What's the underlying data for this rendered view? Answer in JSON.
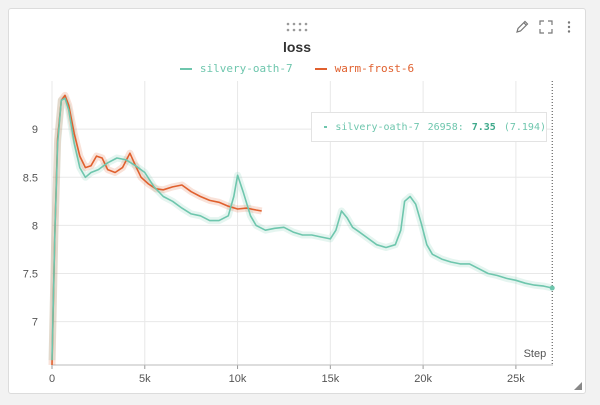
{
  "panel": {
    "icons": [
      "drag-handle-icon",
      "pencil-icon",
      "fullscreen-icon",
      "more-vertical-icon"
    ]
  },
  "colors": {
    "series1": "#6ec6ad",
    "series2": "#e0602e",
    "grid": "#e8e8e8"
  },
  "tooltip": {
    "series": "silvery-oath-7",
    "step": "26958:",
    "value": "7.35",
    "smoothed": "(7.194)"
  },
  "chart_data": {
    "type": "line",
    "title": "loss",
    "xlabel": "Step",
    "ylabel": "",
    "xlim": [
      0,
      27000
    ],
    "ylim": [
      6.55,
      9.5
    ],
    "xticks": [
      0,
      5000,
      10000,
      15000,
      20000,
      25000
    ],
    "xtick_labels": [
      "0",
      "5k",
      "10k",
      "15k",
      "20k",
      "25k"
    ],
    "yticks": [
      7,
      7.5,
      8,
      8.5,
      9
    ],
    "ytick_labels": [
      "7",
      "7.5",
      "8",
      "8.5",
      "9"
    ],
    "grid": true,
    "legend": "top-center",
    "hover_step": 26958,
    "series": [
      {
        "name": "silvery-oath-7",
        "x": [
          0,
          150,
          300,
          500,
          700,
          900,
          1200,
          1500,
          1800,
          2100,
          2500,
          3000,
          3500,
          4000,
          4500,
          5000,
          5500,
          6000,
          6500,
          7000,
          7500,
          8000,
          8500,
          9000,
          9500,
          9800,
          10000,
          10300,
          10700,
          11000,
          11500,
          12000,
          12500,
          13000,
          13500,
          14000,
          14500,
          15000,
          15300,
          15600,
          15900,
          16200,
          16500,
          17000,
          17500,
          18000,
          18500,
          18800,
          19000,
          19300,
          19600,
          19900,
          20200,
          20500,
          21000,
          21500,
          22000,
          22500,
          23000,
          23500,
          24000,
          24500,
          25000,
          25500,
          26000,
          26500,
          26958
        ],
        "y": [
          6.6,
          7.9,
          8.85,
          9.3,
          9.32,
          9.2,
          8.85,
          8.6,
          8.5,
          8.55,
          8.58,
          8.65,
          8.7,
          8.68,
          8.62,
          8.55,
          8.4,
          8.3,
          8.25,
          8.18,
          8.12,
          8.1,
          8.05,
          8.05,
          8.1,
          8.3,
          8.52,
          8.35,
          8.1,
          8.0,
          7.95,
          7.97,
          7.98,
          7.93,
          7.9,
          7.9,
          7.88,
          7.86,
          7.95,
          8.15,
          8.08,
          7.98,
          7.94,
          7.87,
          7.8,
          7.77,
          7.8,
          7.95,
          8.25,
          8.3,
          8.22,
          8.02,
          7.8,
          7.7,
          7.65,
          7.62,
          7.6,
          7.6,
          7.55,
          7.5,
          7.48,
          7.45,
          7.43,
          7.4,
          7.38,
          7.37,
          7.35
        ]
      },
      {
        "name": "warm-frost-6",
        "x": [
          0,
          150,
          300,
          500,
          700,
          900,
          1200,
          1500,
          1800,
          2100,
          2400,
          2700,
          3000,
          3400,
          3800,
          4200,
          4500,
          4800,
          5200,
          5600,
          6000,
          6500,
          7000,
          7500,
          8000,
          8500,
          9000,
          9500,
          10000,
          10500,
          11000,
          11300
        ],
        "y": [
          6.55,
          7.9,
          8.9,
          9.3,
          9.35,
          9.25,
          8.95,
          8.72,
          8.6,
          8.62,
          8.72,
          8.7,
          8.58,
          8.55,
          8.6,
          8.75,
          8.62,
          8.5,
          8.43,
          8.38,
          8.37,
          8.4,
          8.42,
          8.35,
          8.3,
          8.26,
          8.24,
          8.2,
          8.17,
          8.18,
          8.16,
          8.15
        ]
      }
    ]
  }
}
